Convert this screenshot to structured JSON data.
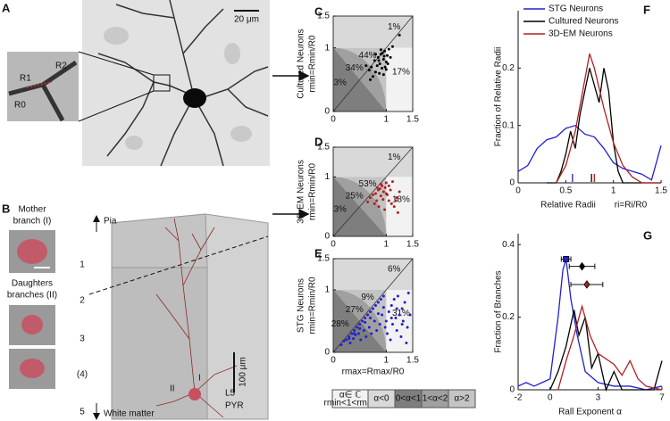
{
  "panel_labels": [
    "A",
    "B",
    "C",
    "D",
    "E",
    "F",
    "G"
  ],
  "panel_a": {
    "scale_bar": "20 μm",
    "inset_labels": [
      "R0",
      "R1",
      "R2"
    ]
  },
  "panel_b": {
    "mother": [
      "Mother",
      "branch (I)"
    ],
    "daughters": [
      "Daughters",
      "branches (II)"
    ],
    "pia": "Pia",
    "layers": [
      "1",
      "2",
      "3",
      "(4)",
      "5"
    ],
    "white_matter": "White matter",
    "cell": [
      "L5",
      "PYR"
    ],
    "scale_bar": "100 μm",
    "branch_labels": [
      "I",
      "II"
    ]
  },
  "region_legend": {
    "items": [
      {
        "label": "α∈ ℂ",
        "sublabel": "rmin<1<rmax",
        "color": "#f2f2f2"
      },
      {
        "label": "α<0",
        "color": "#d9d9d9"
      },
      {
        "label": "0<α<1",
        "color": "#7e7e7e"
      },
      {
        "label": "1<α<2",
        "color": "#a0a0a0"
      },
      {
        "label": "α>2",
        "color": "#c4c4c4"
      }
    ]
  },
  "chart_data": [
    {
      "type": "scatter",
      "ylabel": [
        "Cultured Neurons",
        "rmin=Rmin/R0"
      ],
      "color": "#000000",
      "xlim": [
        0,
        1.5
      ],
      "ylim": [
        0,
        1.5
      ],
      "xticks": [
        0,
        1,
        1.5
      ],
      "yticks": [
        0,
        1,
        1.5
      ],
      "annotations": [
        "1%",
        "44%",
        "34%",
        "3%",
        "17%"
      ],
      "x": [
        0.72,
        0.78,
        0.8,
        0.85,
        0.88,
        0.9,
        0.92,
        0.95,
        0.97,
        1.0,
        1.02,
        0.75,
        0.83,
        0.87,
        0.93,
        0.98,
        1.05,
        1.08,
        0.68,
        0.62,
        0.9,
        0.95,
        1.0,
        0.86,
        0.8,
        1.12,
        1.25,
        0.7,
        0.96,
        1.03
      ],
      "y": [
        0.7,
        0.8,
        0.62,
        0.85,
        0.75,
        0.9,
        0.68,
        0.82,
        0.95,
        0.78,
        0.88,
        0.55,
        0.72,
        0.6,
        0.92,
        0.7,
        0.98,
        0.85,
        0.65,
        0.72,
        0.97,
        0.58,
        0.66,
        0.8,
        0.9,
        1.02,
        1.2,
        0.5,
        0.87,
        0.75
      ]
    },
    {
      "type": "scatter",
      "ylabel": [
        "3D-EM Neurons",
        "rmin=Rmin/R0"
      ],
      "color": "#b02020",
      "xlim": [
        0,
        1.5
      ],
      "ylim": [
        0,
        1.5
      ],
      "xticks": [
        0,
        1,
        1.5
      ],
      "yticks": [
        0,
        1,
        1.5
      ],
      "annotations": [
        "1%",
        "53%",
        "25%",
        "3%",
        "18%"
      ],
      "x": [
        0.7,
        0.75,
        0.8,
        0.82,
        0.85,
        0.88,
        0.9,
        0.92,
        0.95,
        0.98,
        1.0,
        1.02,
        1.05,
        1.08,
        1.1,
        1.15,
        1.2,
        1.22,
        0.78,
        0.86,
        0.94,
        1.0,
        1.05,
        0.65,
        0.9,
        1.12,
        1.25,
        0.97,
        0.83,
        1.18
      ],
      "y": [
        0.65,
        0.7,
        0.72,
        0.6,
        0.78,
        0.8,
        0.68,
        0.85,
        0.75,
        0.82,
        0.9,
        0.7,
        0.6,
        0.78,
        0.55,
        0.5,
        0.65,
        0.4,
        0.55,
        0.5,
        0.62,
        0.72,
        0.85,
        0.58,
        0.88,
        0.92,
        0.75,
        0.45,
        0.82,
        0.6
      ]
    },
    {
      "type": "scatter",
      "ylabel": [
        "STG Neurons",
        "rmin=Rmin/R0"
      ],
      "xlabel": "rmax=Rmax/R0",
      "color": "#2020d0",
      "xlim": [
        0,
        1.5
      ],
      "ylim": [
        0,
        1.5
      ],
      "xticks": [
        0,
        1,
        1.5
      ],
      "yticks": [
        0,
        1,
        1.5
      ],
      "annotations": [
        "6%",
        "9%",
        "27%",
        "28%",
        "31%"
      ],
      "x": [
        0.15,
        0.2,
        0.25,
        0.3,
        0.32,
        0.35,
        0.38,
        0.4,
        0.42,
        0.45,
        0.48,
        0.5,
        0.52,
        0.55,
        0.58,
        0.6,
        0.62,
        0.65,
        0.68,
        0.7,
        0.72,
        0.75,
        0.78,
        0.8,
        0.82,
        0.85,
        0.88,
        0.9,
        0.92,
        0.95,
        0.98,
        1.0,
        1.02,
        1.05,
        1.08,
        1.1,
        1.12,
        1.15,
        1.18,
        1.2,
        1.22,
        1.25,
        1.28,
        1.3,
        1.32,
        1.35,
        1.38,
        1.4,
        1.42,
        1.45,
        0.5,
        0.6,
        0.7,
        0.4,
        0.3,
        1.1,
        1.2,
        1.3,
        0.85,
        0.95
      ],
      "y": [
        0.12,
        0.18,
        0.2,
        0.25,
        0.15,
        0.3,
        0.22,
        0.35,
        0.28,
        0.4,
        0.3,
        0.45,
        0.2,
        0.5,
        0.35,
        0.55,
        0.25,
        0.6,
        0.4,
        0.65,
        0.3,
        0.7,
        0.5,
        0.75,
        0.35,
        0.8,
        0.45,
        0.85,
        0.6,
        0.9,
        0.4,
        0.5,
        0.3,
        0.65,
        0.2,
        0.75,
        0.45,
        0.85,
        0.55,
        0.35,
        0.9,
        0.6,
        0.25,
        0.7,
        0.5,
        0.8,
        0.15,
        0.4,
        0.95,
        0.6,
        0.38,
        0.48,
        0.55,
        0.3,
        0.22,
        0.55,
        0.7,
        0.45,
        0.62,
        0.72
      ]
    },
    {
      "type": "line",
      "ylabel": "Fraction of Relative Radii",
      "xlabel": "Relative Radii",
      "xlabel2": "ri=Ri/R0",
      "xlim": [
        0,
        1.5
      ],
      "ylim": [
        0,
        0.3
      ],
      "xticks": [
        0,
        0.5,
        1,
        1.5
      ],
      "yticks": [
        0,
        0.1,
        0.2
      ],
      "legend": "top-left",
      "medians": [
        0.57,
        0.77,
        0.8
      ],
      "series": [
        {
          "name": "STG Neurons",
          "color": "#2020d0",
          "x": [
            0,
            0.1,
            0.2,
            0.3,
            0.4,
            0.5,
            0.6,
            0.7,
            0.8,
            0.9,
            1.0,
            1.1,
            1.2,
            1.3,
            1.4,
            1.5
          ],
          "values": [
            0.02,
            0.03,
            0.06,
            0.075,
            0.08,
            0.095,
            0.1,
            0.085,
            0.08,
            0.06,
            0.035,
            0.025,
            0.02,
            0.015,
            0.005,
            0.065
          ]
        },
        {
          "name": "Cultured Neurons",
          "color": "#000000",
          "x": [
            0.3,
            0.4,
            0.45,
            0.5,
            0.55,
            0.6,
            0.65,
            0.7,
            0.75,
            0.8,
            0.85,
            0.9,
            0.95,
            1.0,
            1.05,
            1.1,
            1.5
          ],
          "values": [
            0,
            0,
            0.02,
            0.05,
            0.09,
            0.06,
            0.12,
            0.16,
            0.2,
            0.17,
            0.14,
            0.2,
            0.16,
            0.07,
            0.02,
            0,
            0
          ]
        },
        {
          "name": "3D-EM Neurons",
          "color": "#b02020",
          "x": [
            0.4,
            0.5,
            0.6,
            0.7,
            0.75,
            0.8,
            0.9,
            1.0,
            1.1,
            1.2,
            1.3,
            1.5
          ],
          "values": [
            0,
            0.03,
            0.09,
            0.18,
            0.225,
            0.2,
            0.13,
            0.07,
            0.03,
            0.01,
            0,
            0
          ]
        }
      ]
    },
    {
      "type": "line",
      "ylabel": "Fraction of Branches",
      "xlabel": "Rall Exponent α",
      "xlim": [
        -2,
        7
      ],
      "ylim": [
        0,
        0.43
      ],
      "xticks": [
        -2,
        0,
        3,
        7
      ],
      "yticks": [
        0,
        0.2,
        0.4
      ],
      "means": [
        {
          "x": 1,
          "y": 0.36,
          "err": 0.3
        },
        {
          "x": 2,
          "y": 0.34,
          "err": 0.8
        },
        {
          "x": 2.3,
          "y": 0.29,
          "err": 1
        }
      ],
      "series": [
        {
          "name": "STG Neurons",
          "color": "#2020d0",
          "x": [
            -2,
            -1.5,
            -1,
            -0.5,
            0,
            0.5,
            0.8,
            1,
            1.3,
            1.7,
            2.2,
            3,
            4,
            5,
            6,
            7
          ],
          "values": [
            0.01,
            0.02,
            0.01,
            0.02,
            0.03,
            0.2,
            0.33,
            0.36,
            0.25,
            0.15,
            0.05,
            0.02,
            0.01,
            0.01,
            0,
            0.01
          ]
        },
        {
          "name": "Cultured Neurons",
          "color": "#000000",
          "x": [
            0,
            0.5,
            1,
            1.5,
            1.8,
            2.2,
            2.6,
            3,
            3.5,
            4,
            4.5,
            6.5,
            7
          ],
          "values": [
            0,
            0.05,
            0.12,
            0.22,
            0.15,
            0.2,
            0.06,
            0.1,
            0,
            0.05,
            0,
            0,
            0.08
          ]
        },
        {
          "name": "3D-EM Neurons",
          "color": "#b02020",
          "x": [
            0.5,
            1,
            1.5,
            2,
            2.5,
            3,
            4,
            4.5,
            5,
            5.5,
            6,
            7
          ],
          "values": [
            0,
            0.08,
            0.15,
            0.23,
            0.15,
            0.1,
            0.07,
            0.04,
            0.08,
            0.03,
            0.01,
            0
          ]
        }
      ]
    }
  ]
}
